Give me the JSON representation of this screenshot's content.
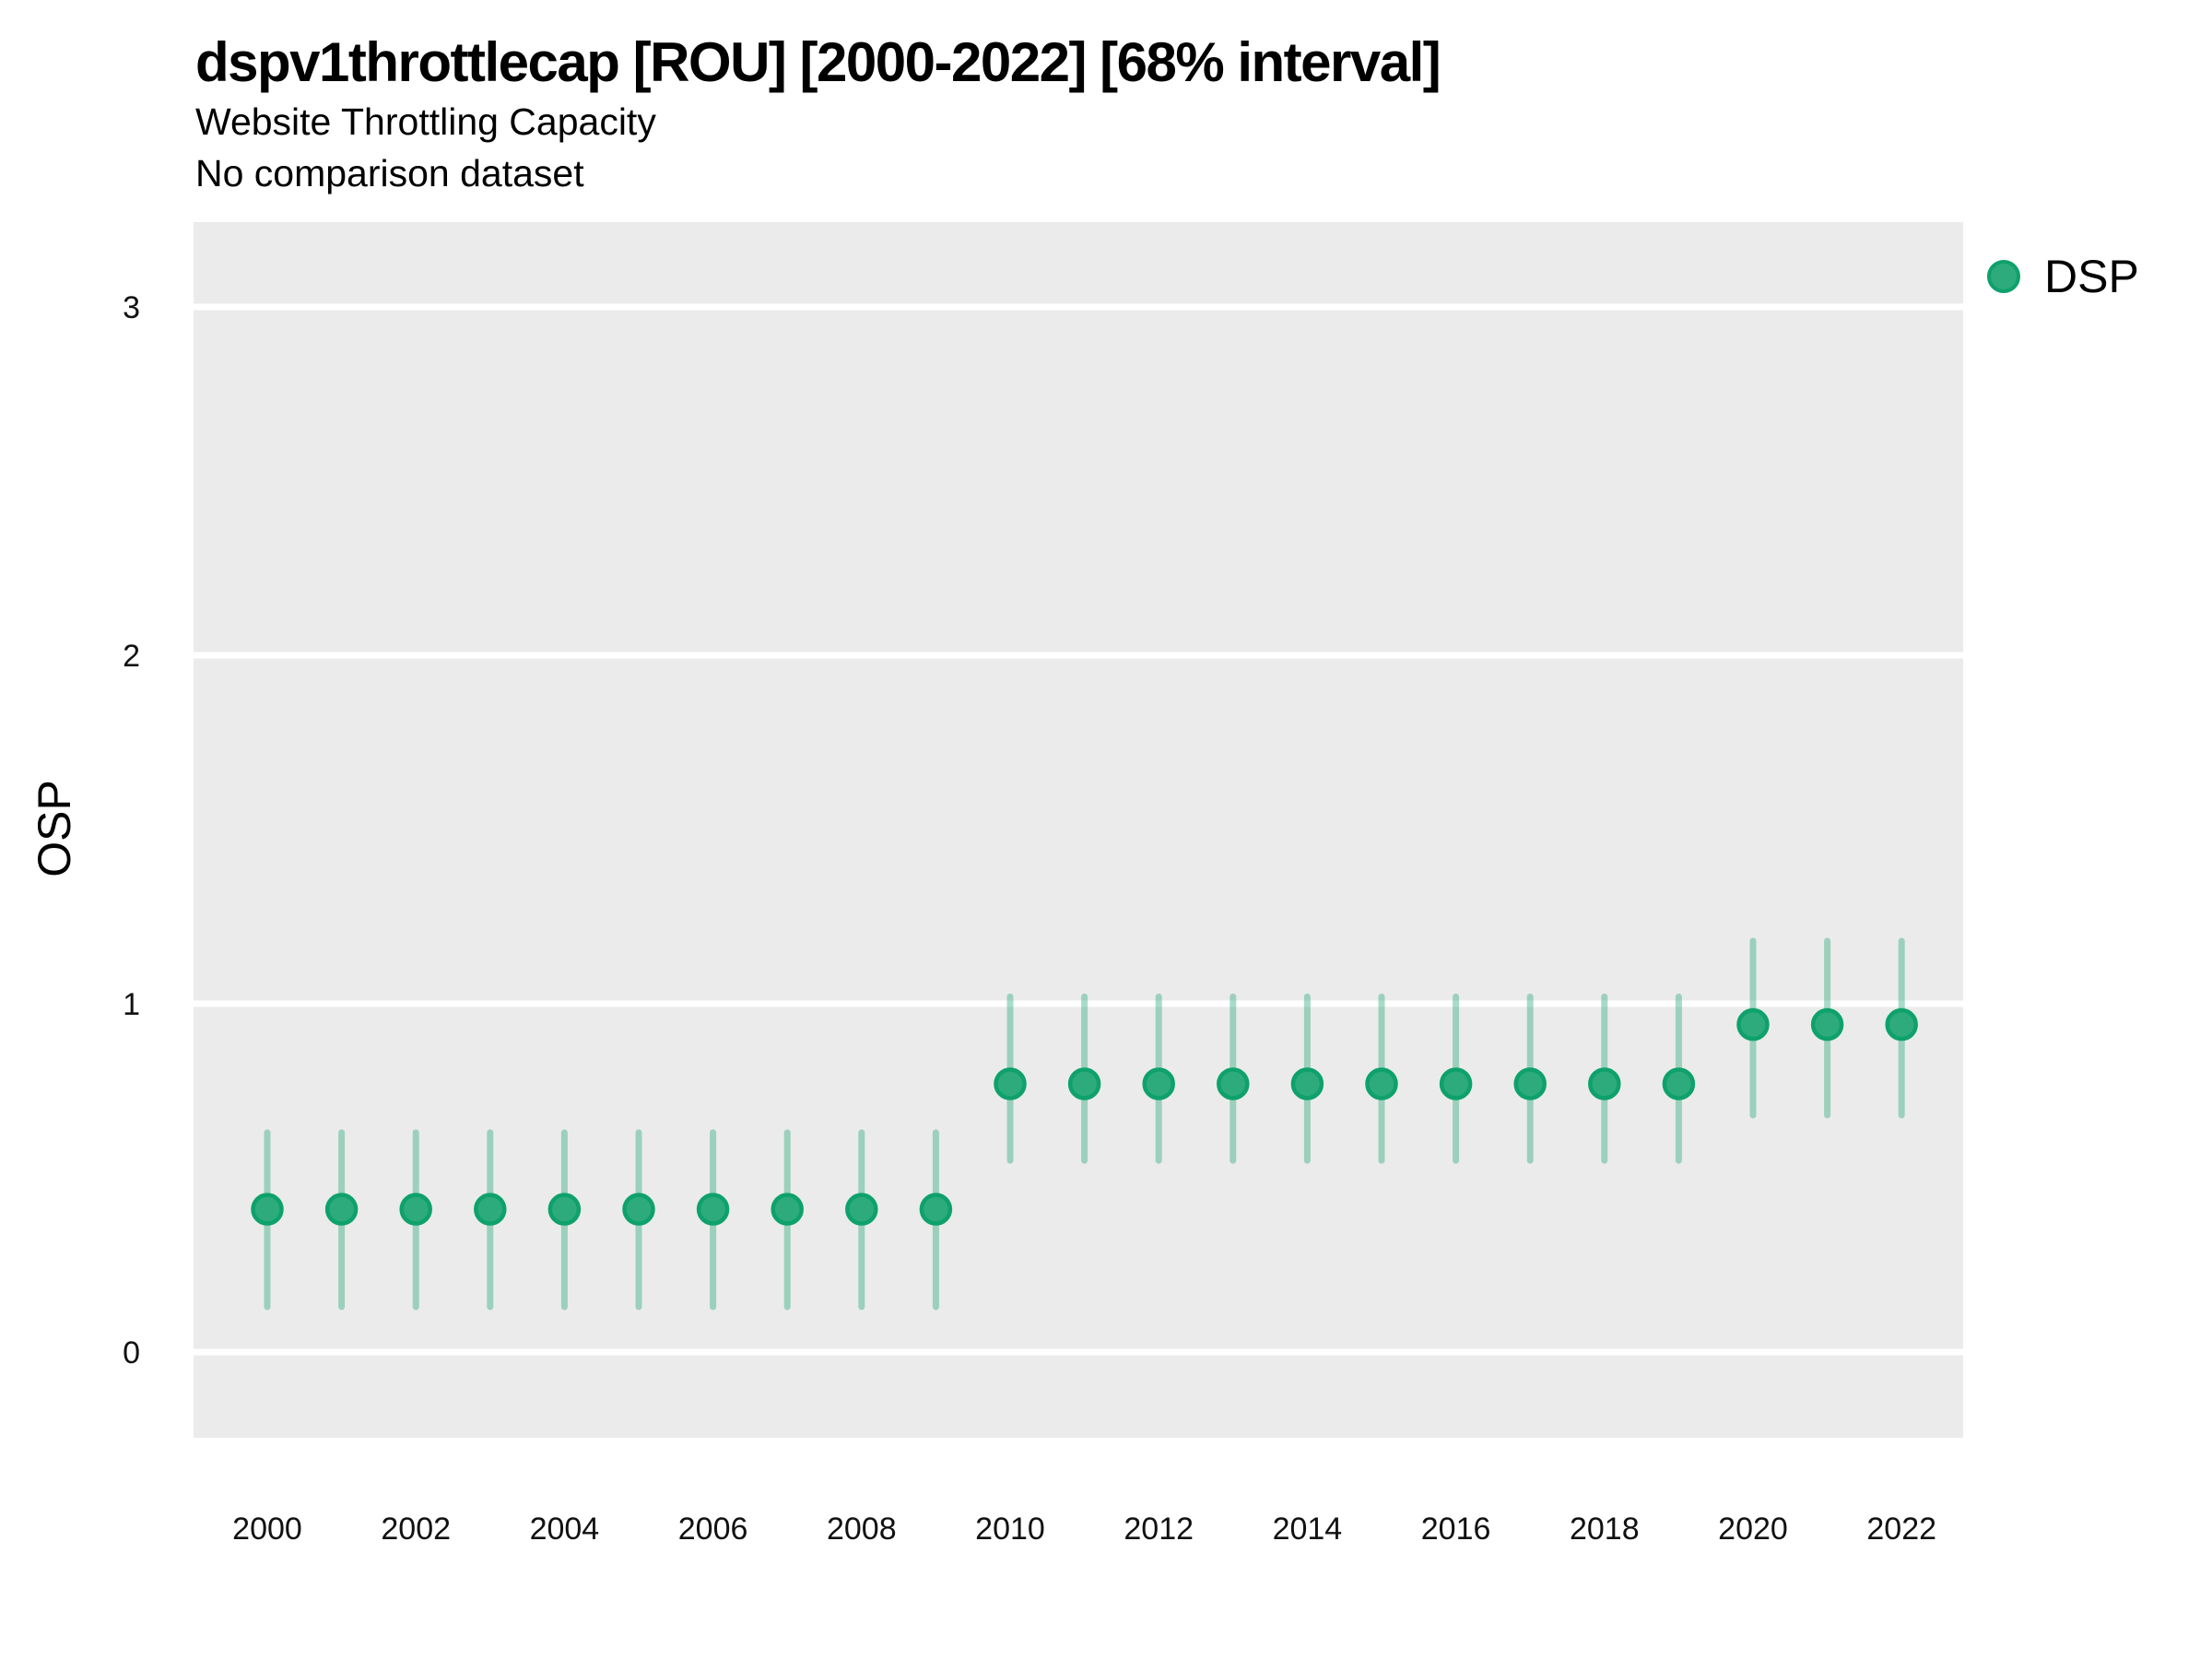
{
  "chart_data": {
    "type": "scatter",
    "subtype": "pointrange",
    "title": "dspv1throttlecap [ROU] [2000-2022] [68% interval]",
    "subtitle": "Website Throttling Capacity",
    "note": "No comparison dataset",
    "xlabel": "",
    "ylabel": "OSP",
    "legend": {
      "label": "DSP",
      "position": "right"
    },
    "interval": "68%",
    "xlim": [
      1999.05,
      2022.95
    ],
    "ylim": [
      -0.25,
      3.25
    ],
    "xticks": [
      2000,
      2002,
      2004,
      2006,
      2008,
      2010,
      2012,
      2014,
      2016,
      2018,
      2020,
      2022
    ],
    "yticks": [
      0,
      1,
      2,
      3
    ],
    "grid": "horizontal-major-only",
    "series": [
      {
        "name": "DSP",
        "points": [
          {
            "year": 2000,
            "value": 0.41,
            "lo": 0.13,
            "hi": 0.63
          },
          {
            "year": 2001,
            "value": 0.41,
            "lo": 0.13,
            "hi": 0.63
          },
          {
            "year": 2002,
            "value": 0.41,
            "lo": 0.13,
            "hi": 0.63
          },
          {
            "year": 2003,
            "value": 0.41,
            "lo": 0.13,
            "hi": 0.63
          },
          {
            "year": 2004,
            "value": 0.41,
            "lo": 0.13,
            "hi": 0.63
          },
          {
            "year": 2005,
            "value": 0.41,
            "lo": 0.13,
            "hi": 0.63
          },
          {
            "year": 2006,
            "value": 0.41,
            "lo": 0.13,
            "hi": 0.63
          },
          {
            "year": 2007,
            "value": 0.41,
            "lo": 0.13,
            "hi": 0.63
          },
          {
            "year": 2008,
            "value": 0.41,
            "lo": 0.13,
            "hi": 0.63
          },
          {
            "year": 2009,
            "value": 0.41,
            "lo": 0.13,
            "hi": 0.63
          },
          {
            "year": 2010,
            "value": 0.77,
            "lo": 0.55,
            "hi": 1.02
          },
          {
            "year": 2011,
            "value": 0.77,
            "lo": 0.55,
            "hi": 1.02
          },
          {
            "year": 2012,
            "value": 0.77,
            "lo": 0.55,
            "hi": 1.02
          },
          {
            "year": 2013,
            "value": 0.77,
            "lo": 0.55,
            "hi": 1.02
          },
          {
            "year": 2014,
            "value": 0.77,
            "lo": 0.55,
            "hi": 1.02
          },
          {
            "year": 2015,
            "value": 0.77,
            "lo": 0.55,
            "hi": 1.02
          },
          {
            "year": 2016,
            "value": 0.77,
            "lo": 0.55,
            "hi": 1.02
          },
          {
            "year": 2017,
            "value": 0.77,
            "lo": 0.55,
            "hi": 1.02
          },
          {
            "year": 2018,
            "value": 0.77,
            "lo": 0.55,
            "hi": 1.02
          },
          {
            "year": 2019,
            "value": 0.77,
            "lo": 0.55,
            "hi": 1.02
          },
          {
            "year": 2020,
            "value": 0.94,
            "lo": 0.68,
            "hi": 1.18
          },
          {
            "year": 2021,
            "value": 0.94,
            "lo": 0.68,
            "hi": 1.18
          },
          {
            "year": 2022,
            "value": 0.94,
            "lo": 0.68,
            "hi": 1.18
          }
        ]
      }
    ]
  },
  "colors": {
    "point_fill": "#2dab7d",
    "point_stroke": "#0ea16c",
    "interval_line": "#2dab7d",
    "panel_background": "#ebebeb",
    "gridline": "#ffffff",
    "figure_background": "#ffffff",
    "title_text": "#000000",
    "axis_text": "#111111"
  }
}
